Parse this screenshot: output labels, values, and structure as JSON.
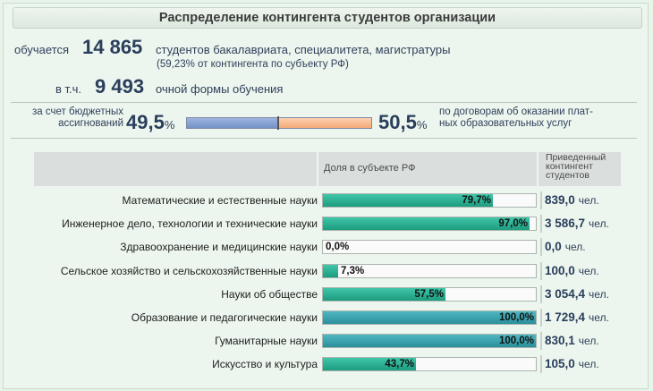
{
  "title": "Распределение контингента студентов организации",
  "summary": {
    "line1_prefix": "обучается",
    "total_students": "14 865",
    "line1_suffix": "студентов бакалавриата, специалитета, магистратуры",
    "share_note": "(59,23% от контингента по субъекту РФ)",
    "line2_prefix": "в т.ч.",
    "fulltime_students": "9 493",
    "line2_suffix": "очной формы обучения"
  },
  "funding": {
    "left_label_1": "за счет бюджетных",
    "left_label_2": "ассигнований",
    "budget_value": "49,5",
    "pct_sign": "%",
    "contract_value": "50,5",
    "right_label_1": "по договорам об оказании плат-",
    "right_label_2": "ных образовательных услуг",
    "budget_fraction": 0.495,
    "colors": {
      "budget": "#7a95cb",
      "contract": "#f5b283"
    }
  },
  "table": {
    "col_share": "Доля в субъекте РФ",
    "col_reduced_1": "Приведенный",
    "col_reduced_2": "контингент",
    "col_reduced_3": "студентов",
    "unit": "чел."
  },
  "chart_data": {
    "type": "bar",
    "categories": [
      "Математические и естественные науки",
      "Инженерное дело, технологии и технические науки",
      "Здравоохранение и медицинские науки",
      "Сельское хозяйство и сельскохозяйственные науки",
      "Науки об обществе",
      "Образование и педагогические науки",
      "Гуманитарные науки",
      "Искусство и культура"
    ],
    "values": [
      79.7,
      97.0,
      0.0,
      7.3,
      57.5,
      100.0,
      100.0,
      43.7
    ],
    "value_labels": [
      "79,7%",
      "97,0%",
      "0,0%",
      "7,3%",
      "57,5%",
      "100,0%",
      "100,0%",
      "43,7%"
    ],
    "ylim": [
      0,
      100
    ],
    "reduced_contingent": [
      "839,0",
      "3 586,7",
      "0,0",
      "100,0",
      "3 054,4",
      "1 729,4",
      "830,1",
      "105,0"
    ],
    "colors": {
      "bar": "#27ab8c",
      "bar_full": "#3398a3"
    }
  }
}
